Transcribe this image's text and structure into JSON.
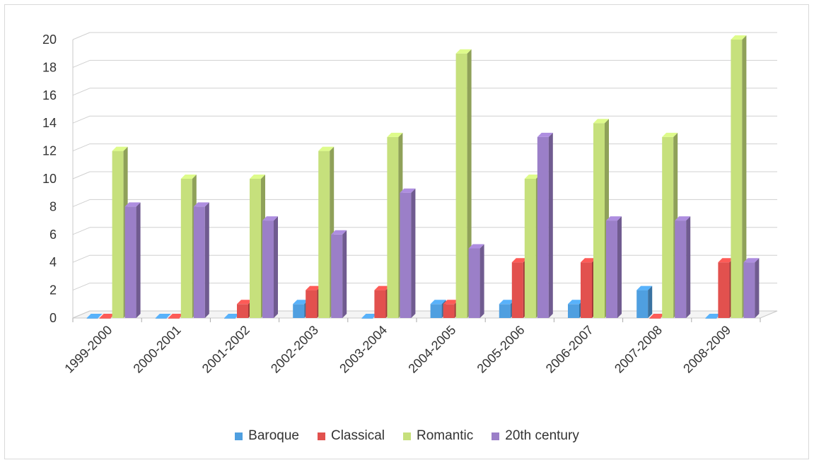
{
  "chart_data": {
    "type": "bar",
    "title": "",
    "xlabel": "",
    "ylabel": "",
    "ylim": [
      0,
      20
    ],
    "yticks": [
      0,
      2,
      4,
      6,
      8,
      10,
      12,
      14,
      16,
      18,
      20
    ],
    "grid": true,
    "legend_position": "bottom",
    "categories": [
      "1999-2000",
      "2000-2001",
      "2001-2002",
      "2002-2003",
      "2003-2004",
      "2004-2005",
      "2005-2006",
      "2006-2007",
      "2007-2008",
      "2008-2009"
    ],
    "series": [
      {
        "name": "Baroque",
        "color": "#4f9fe0",
        "values": [
          0,
          0,
          0,
          1,
          0,
          1,
          1,
          1,
          2,
          0
        ]
      },
      {
        "name": "Classical",
        "color": "#e2514e",
        "values": [
          0,
          0,
          1,
          2,
          2,
          1,
          4,
          4,
          0,
          4
        ]
      },
      {
        "name": "Romantic",
        "color": "#c6e07c",
        "values": [
          12,
          10,
          10,
          12,
          13,
          19,
          10,
          14,
          13,
          20
        ]
      },
      {
        "name": "20th century",
        "color": "#9b7fc8",
        "values": [
          8,
          8,
          7,
          6,
          9,
          5,
          13,
          7,
          7,
          4
        ]
      }
    ]
  }
}
